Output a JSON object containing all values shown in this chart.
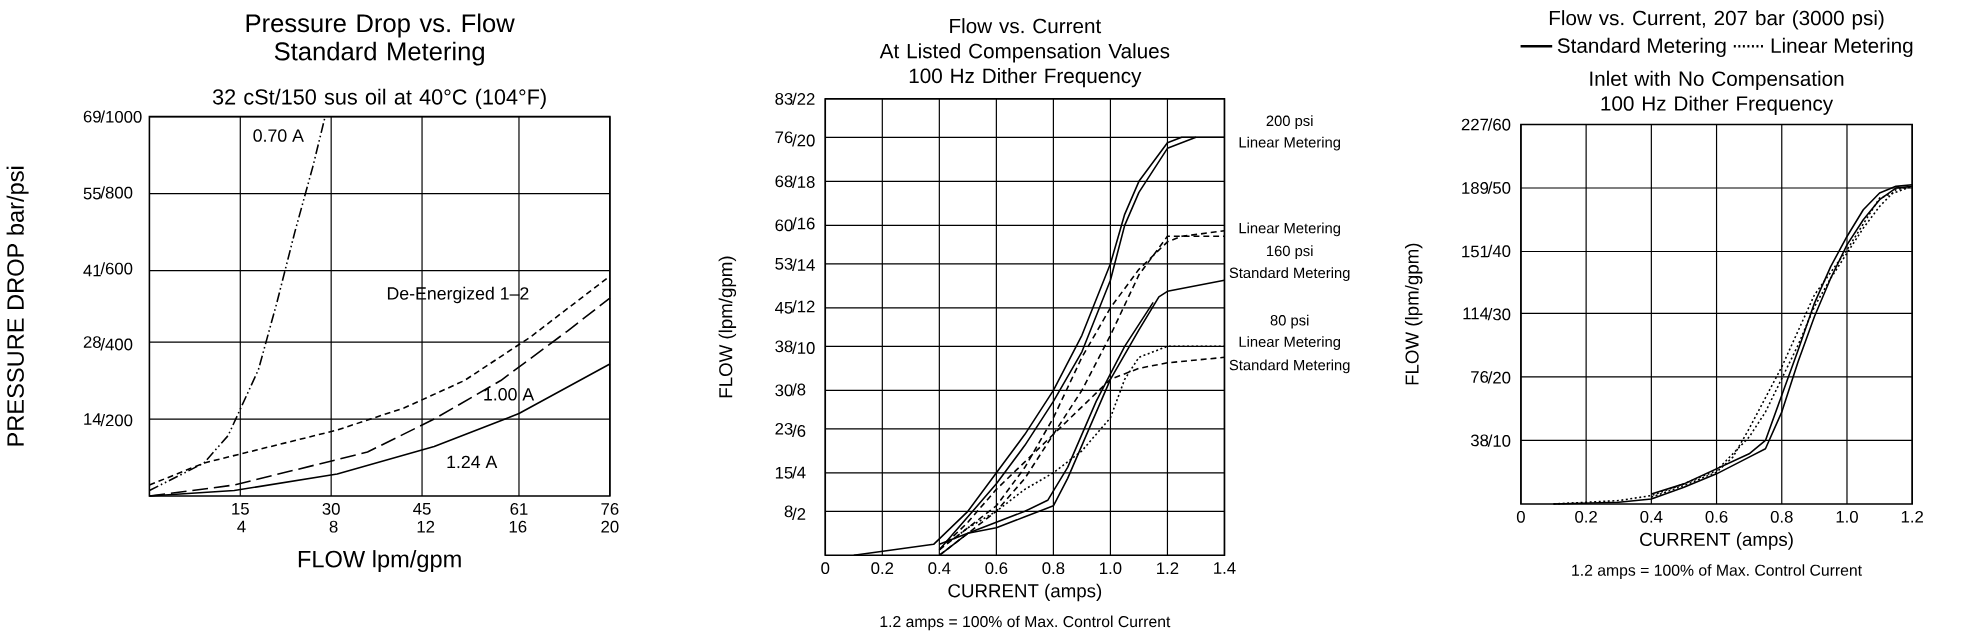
{
  "chart_data": [
    {
      "type": "line",
      "title": "Pressure Drop vs. Flow Standard Metering",
      "subtitle": "32 cSt/150 sus oil at 40°C (104°F)",
      "xlabel": "FLOW lpm/gpm",
      "ylabel": "PRESSURE DROP bar/psi",
      "xlim": [
        0,
        76
      ],
      "ylim": [
        0,
        69
      ],
      "xticks": [
        15,
        30,
        45,
        61,
        76
      ],
      "x2lim": [
        0,
        20
      ],
      "x2ticks": [
        4,
        8,
        12,
        16,
        20
      ],
      "yticks": [
        14,
        28,
        41,
        55,
        69
      ],
      "y2lim": [
        0,
        1000
      ],
      "y2ticks": [
        {
          "value": 200,
          "label": "/200"
        },
        {
          "value": 400,
          "label": "/400"
        },
        {
          "value": 600,
          "label": "/600"
        },
        {
          "value": 800,
          "label": "/800"
        },
        {
          "value": 1000,
          "label": "/1000"
        }
      ],
      "grid": true,
      "series": [
        {
          "name": "0.70 A",
          "color": "#000000",
          "line_style": "dashdot",
          "x": [
            0,
            9,
            13,
            18,
            21,
            24,
            27,
            29
          ],
          "values": [
            1,
            6,
            11,
            23,
            35,
            48,
            60,
            69
          ]
        },
        {
          "name": "De-Energized 1–2",
          "color": "#000000",
          "line_style": "dashed",
          "x": [
            0,
            9,
            20,
            31,
            42,
            52,
            63,
            76
          ],
          "values": [
            2,
            6,
            9,
            12,
            16,
            21,
            29,
            40
          ]
        },
        {
          "name": "1.00 A",
          "color": "#000000",
          "line_style": "longdash",
          "x": [
            0,
            14,
            25,
            36,
            47,
            58,
            69,
            76
          ],
          "values": [
            0,
            2,
            5,
            8,
            14,
            21,
            30,
            36
          ]
        },
        {
          "name": "1.24 A",
          "color": "#000000",
          "line_style": "solid",
          "x": [
            0,
            14,
            31,
            47,
            61,
            76
          ],
          "values": [
            0,
            1,
            4,
            9,
            15,
            24
          ]
        }
      ]
    },
    {
      "type": "line",
      "title": "Flow vs. Current",
      "subtitle": "At Listed Compensation Values 100 Hz Dither Frequency",
      "xlabel": "CURRENT (amps)",
      "ylabel": "FLOW (lpm/gpm)",
      "xlim": [
        0,
        1.4
      ],
      "ylim": [
        0,
        83
      ],
      "xticks": [
        0,
        0.2,
        0.4,
        0.6,
        0.8,
        {
          "value": 1,
          "label": "1.0"
        },
        1.2,
        1.4
      ],
      "yticks": [
        8,
        15,
        23,
        30,
        38,
        45,
        53,
        60,
        68,
        76,
        83
      ],
      "y2lim": [
        0,
        22
      ],
      "y2ticks": [
        {
          "value": 2,
          "label": "/2"
        },
        {
          "value": 4,
          "label": "/4"
        },
        {
          "value": 6,
          "label": "/6"
        },
        {
          "value": 8,
          "label": "/8"
        },
        {
          "value": 10,
          "label": "/10"
        },
        {
          "value": 12,
          "label": "/12"
        },
        {
          "value": 14,
          "label": "/14"
        },
        {
          "value": 16,
          "label": "/16"
        },
        {
          "value": 18,
          "label": "/18"
        },
        {
          "value": 20,
          "label": "/20"
        },
        {
          "value": 22,
          "label": "/22"
        }
      ],
      "grid": true,
      "annotations": [
        "200 psi",
        "Linear Metering",
        "Linear Metering",
        "160 psi",
        "Standard Metering",
        "80 psi",
        "Linear Metering",
        "Standard Metering",
        "1.2 amps = 100% of Max. Control Current"
      ],
      "series": [
        {
          "color": "#000000",
          "line_style": "solid",
          "x": [
            0.1,
            0.38,
            0.5,
            0.6,
            0.7,
            0.8,
            0.9,
            1.0,
            1.05,
            1.1,
            1.2,
            1.25,
            1.4
          ],
          "values": [
            0,
            2,
            8,
            15,
            22,
            30,
            40,
            53,
            62,
            68,
            75,
            76,
            76
          ]
        },
        {
          "color": "#000000",
          "line_style": "solid",
          "x": [
            0.4,
            0.5,
            0.6,
            0.7,
            0.8,
            0.9,
            1.0,
            1.05,
            1.1,
            1.2,
            1.3
          ],
          "values": [
            1,
            7,
            13,
            20,
            28,
            37,
            50,
            60,
            66,
            74,
            76
          ]
        },
        {
          "color": "#000000",
          "line_style": "dashed",
          "x": [
            0.4,
            0.5,
            0.6,
            0.7,
            0.8,
            0.9,
            1.0,
            1.1,
            1.2,
            1.25,
            1.4
          ],
          "values": [
            1,
            5,
            9,
            16,
            25,
            36,
            45,
            52,
            57,
            58,
            59
          ]
        },
        {
          "color": "#000000",
          "line_style": "dashed",
          "x": [
            0.4,
            0.5,
            0.6,
            0.7,
            0.8,
            0.9,
            1.0,
            1.1,
            1.2,
            1.4
          ],
          "values": [
            0,
            4,
            8,
            14,
            22,
            30,
            40,
            51,
            58,
            58
          ]
        },
        {
          "color": "#000000",
          "line_style": "solid",
          "x": [
            0.4,
            0.5,
            0.6,
            0.7,
            0.8,
            0.85,
            0.9,
            1.0,
            1.1,
            1.17,
            1.2,
            1.4
          ],
          "values": [
            0,
            4,
            5,
            7,
            9,
            14,
            20,
            32,
            41,
            47,
            48,
            50
          ]
        },
        {
          "color": "#000000",
          "line_style": "solid",
          "x": [
            0.4,
            0.5,
            0.6,
            0.7,
            0.78,
            0.85,
            0.95,
            1.05,
            1.15
          ],
          "values": [
            2,
            4,
            6,
            8,
            10,
            16,
            28,
            38,
            46
          ]
        },
        {
          "color": "#000000",
          "line_style": "dashed",
          "x": [
            0.4,
            0.5,
            0.6,
            0.7,
            0.8,
            0.9,
            1.0,
            1.1,
            1.2,
            1.4
          ],
          "values": [
            1,
            6,
            12,
            17,
            22,
            27,
            32,
            34,
            35,
            36
          ]
        },
        {
          "color": "#000000",
          "line_style": "dotted",
          "x": [
            0.45,
            0.5,
            0.6,
            0.7,
            0.8,
            0.9,
            1.0,
            1.05,
            1.1,
            1.2,
            1.4
          ],
          "values": [
            3,
            5,
            8,
            12,
            15,
            19,
            25,
            32,
            36,
            38,
            38
          ]
        }
      ]
    },
    {
      "type": "line",
      "title": "Flow vs. Current, 207 bar (3000 psi)",
      "subtitle": "Inlet with No Compensation 100 Hz Dither Frequency",
      "xlabel": "CURRENT (amps)",
      "ylabel": "FLOW (lpm/gpm)",
      "xlim": [
        0,
        1.2
      ],
      "ylim": [
        0,
        227
      ],
      "xticks": [
        0,
        0.2,
        0.4,
        0.6,
        0.8,
        {
          "value": 1,
          "label": "1.0"
        },
        1.2
      ],
      "yticks": [
        38,
        76,
        114,
        151,
        189,
        227
      ],
      "y2lim": [
        0,
        60
      ],
      "y2ticks": [
        {
          "value": 10,
          "label": "/10"
        },
        {
          "value": 20,
          "label": "/20"
        },
        {
          "value": 30,
          "label": "/30"
        },
        {
          "value": 40,
          "label": "/40"
        },
        {
          "value": 50,
          "label": "/50"
        },
        {
          "value": 60,
          "label": "/60"
        }
      ],
      "grid": true,
      "legend": "top",
      "annotations": [
        "1.2 amps = 100% of Max. Control Current"
      ],
      "series": [
        {
          "name": "Standard Metering",
          "color": "#000000",
          "line_style": "solid",
          "x": [
            0.1,
            0.3,
            0.4,
            0.5,
            0.6,
            0.7,
            0.75,
            0.8,
            0.85,
            0.9,
            0.95,
            1.0,
            1.05,
            1.1,
            1.15,
            1.2
          ],
          "values": [
            0,
            1,
            3,
            10,
            18,
            28,
            33,
            55,
            85,
            112,
            135,
            155,
            170,
            182,
            189,
            190
          ]
        },
        {
          "color": "#000000",
          "line_style": "solid",
          "x": [
            0.4,
            0.5,
            0.6,
            0.7,
            0.75,
            0.8,
            0.85,
            0.9,
            0.95,
            1.0,
            1.05,
            1.1,
            1.15,
            1.2
          ],
          "values": [
            6,
            12,
            21,
            30,
            38,
            65,
            92,
            120,
            142,
            160,
            176,
            186,
            190,
            191
          ]
        },
        {
          "name": "Linear Metering",
          "color": "#000000",
          "line_style": "dotted",
          "x": [
            0.1,
            0.3,
            0.4,
            0.5,
            0.6,
            0.7,
            0.75,
            0.8,
            0.85,
            0.9,
            0.95,
            1.0,
            1.05,
            1.1,
            1.15,
            1.2
          ],
          "values": [
            0,
            2,
            5,
            12,
            20,
            40,
            55,
            75,
            95,
            118,
            135,
            150,
            165,
            178,
            188,
            190
          ]
        },
        {
          "color": "#000000",
          "line_style": "dotted",
          "x": [
            0.4,
            0.5,
            0.6,
            0.65,
            0.7,
            0.8,
            0.9,
            1.0,
            1.1,
            1.2
          ],
          "values": [
            4,
            11,
            19,
            28,
            45,
            82,
            125,
            152,
            183,
            190
          ]
        }
      ]
    }
  ]
}
